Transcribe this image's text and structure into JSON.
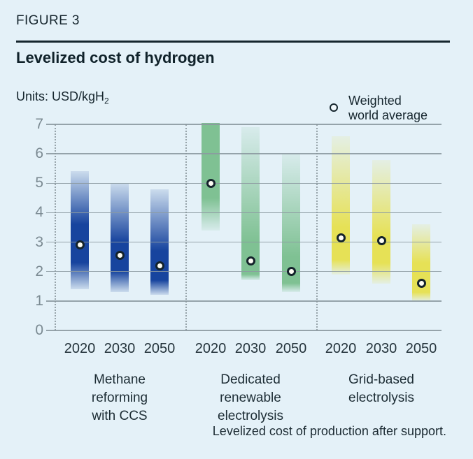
{
  "header": {
    "figure_label": "FIGURE 3",
    "title": "Levelized cost of hydrogen"
  },
  "units": {
    "prefix": "Units:",
    "value": "USD/kgH",
    "subscript": "2"
  },
  "legend": {
    "marker": "weighted-average-circle",
    "line1": "Weighted",
    "line2": "world average"
  },
  "footnote": "Levelized cost of production after support.",
  "colors": {
    "background": "#e4f1f8",
    "text_dark": "#16262e",
    "gridline": "#8c9aa1",
    "tick_label": "#7b8a92",
    "methane_blue": "#17449e",
    "renewable_green": "#7fc193",
    "grid_yellow": "#e6e156",
    "marker_fill": "#fdfcf3",
    "marker_ring": "#14232b"
  },
  "chart_data": {
    "type": "bar",
    "subtype": "gradient-range-bars-with-average-points",
    "title": "Levelized cost of hydrogen",
    "ylabel": "USD/kgH2",
    "xlabel": "",
    "ylim": [
      0,
      7
    ],
    "yticks": [
      0,
      1,
      2,
      3,
      4,
      5,
      6,
      7
    ],
    "grid": true,
    "legend_label": "Weighted world average",
    "categories": [
      "2020",
      "2030",
      "2050"
    ],
    "groups": [
      {
        "name": "Methane reforming with CCS",
        "label_lines": "Methane\nreforming\nwith CCS",
        "color": "#17449e",
        "bars": [
          {
            "year": "2020",
            "low": 1.4,
            "high": 5.4,
            "core_low": 2.3,
            "core_high": 3.6,
            "weighted_avg": 2.9
          },
          {
            "year": "2030",
            "low": 1.3,
            "high": 5.0,
            "core_low": 2.0,
            "core_high": 3.0,
            "weighted_avg": 2.55
          },
          {
            "year": "2050",
            "low": 1.2,
            "high": 4.8,
            "core_low": 1.7,
            "core_high": 2.7,
            "weighted_avg": 2.2
          }
        ]
      },
      {
        "name": "Dedicated renewable electrolysis",
        "label_lines": "Dedicated\nrenewable\nelectrolysis",
        "color": "#7fc193",
        "bars": [
          {
            "year": "2020",
            "low": 3.4,
            "high": 7.05,
            "core_low": 4.5,
            "core_high": 7.05,
            "weighted_avg": 5.0
          },
          {
            "year": "2030",
            "low": 1.7,
            "high": 6.9,
            "core_low": 1.9,
            "core_high": 3.0,
            "weighted_avg": 2.35
          },
          {
            "year": "2050",
            "low": 1.3,
            "high": 6.0,
            "core_low": 1.6,
            "core_high": 2.5,
            "weighted_avg": 2.0
          }
        ]
      },
      {
        "name": "Grid-based electrolysis",
        "label_lines": "Grid-based\nelectrolysis",
        "color": "#e6e156",
        "bars": [
          {
            "year": "2020",
            "low": 1.9,
            "high": 6.6,
            "core_low": 2.4,
            "core_high": 3.5,
            "weighted_avg": 3.15
          },
          {
            "year": "2030",
            "low": 1.6,
            "high": 5.8,
            "core_low": 2.3,
            "core_high": 3.2,
            "weighted_avg": 3.05
          },
          {
            "year": "2050",
            "low": 1.0,
            "high": 3.6,
            "core_low": 1.3,
            "core_high": 2.3,
            "weighted_avg": 1.6
          }
        ]
      }
    ]
  }
}
